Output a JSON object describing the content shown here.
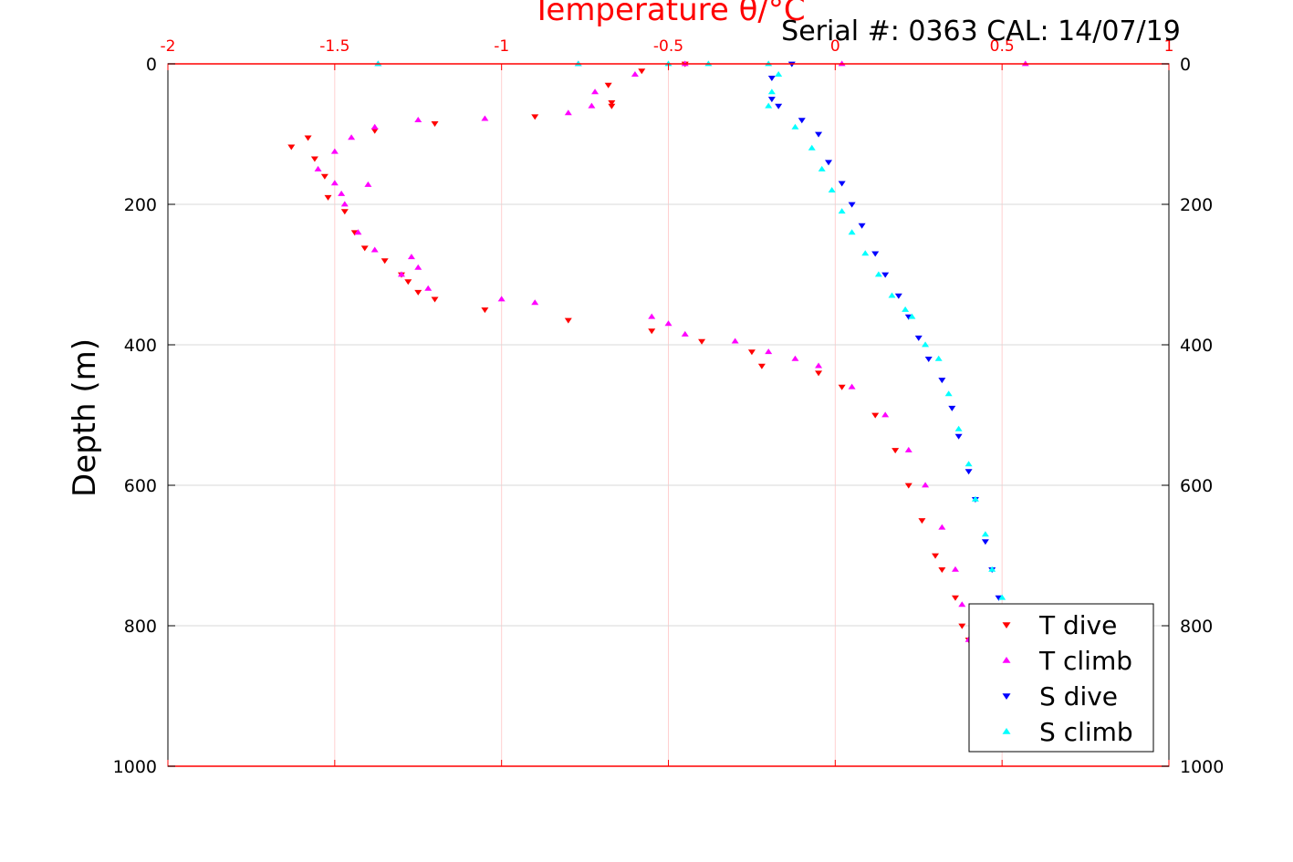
{
  "header": {
    "serial_text": "Serial #: 0363  CAL: 14/07/19"
  },
  "chart_data": {
    "type": "scatter",
    "title": "Temperature θ/°C",
    "xlabel": "Temperature θ/°C",
    "ylabel": "Depth (m)",
    "xlim": [
      -2,
      1
    ],
    "ylim": [
      0,
      1000
    ],
    "y_reversed": true,
    "x_axis_position": "top",
    "xticks": [
      -2,
      -1.5,
      -1,
      -0.5,
      0,
      0.5,
      1
    ],
    "xtick_labels": [
      "-2",
      "-1.5",
      "-1",
      "-0.5",
      "0",
      "0.5",
      "1"
    ],
    "yticks": [
      0,
      200,
      400,
      600,
      800,
      1000
    ],
    "ytick_labels": [
      "0",
      "200",
      "400",
      "600",
      "800",
      "1000"
    ],
    "grid": true,
    "legend_position": "bottom-right",
    "colors": {
      "t_dive": "#ff0000",
      "t_climb": "#ff00ff",
      "s_dive": "#0000ff",
      "s_climb": "#00ffff",
      "x_axis": "#ff0000",
      "grid": "#d9d9d9",
      "grid_x": "#ffd0d0"
    },
    "series": [
      {
        "name": "T dive",
        "marker": "triangle-down",
        "color": "#ff0000",
        "x": [
          -0.45,
          -0.58,
          -0.68,
          -0.67,
          -0.67,
          -0.9,
          -1.2,
          -1.38,
          -1.58,
          -1.63,
          -1.56,
          -1.53,
          -1.52,
          -1.47,
          -1.44,
          -1.41,
          -1.35,
          -1.3,
          -1.28,
          -1.25,
          -1.2,
          -1.05,
          -0.8,
          -0.55,
          -0.4,
          -0.25,
          -0.22,
          -0.05,
          0.02,
          0.12,
          0.18,
          0.22,
          0.26,
          0.3,
          0.32,
          0.36,
          0.38,
          0.4
        ],
        "y": [
          0,
          10,
          30,
          55,
          60,
          75,
          85,
          95,
          105,
          118,
          135,
          160,
          190,
          210,
          240,
          262,
          280,
          300,
          310,
          325,
          335,
          350,
          365,
          380,
          395,
          410,
          430,
          440,
          460,
          500,
          550,
          600,
          650,
          700,
          720,
          760,
          800,
          820
        ]
      },
      {
        "name": "T climb",
        "marker": "triangle-up",
        "color": "#ff00ff",
        "x": [
          -0.45,
          -0.6,
          -0.72,
          -0.73,
          -0.8,
          -1.05,
          -1.25,
          -1.38,
          -1.45,
          -1.5,
          -1.55,
          -1.5,
          -1.4,
          -1.48,
          -1.47,
          -1.43,
          -1.38,
          -1.27,
          -1.25,
          -1.3,
          -1.22,
          -1.0,
          -0.9,
          -0.55,
          -0.5,
          -0.45,
          -0.3,
          -0.2,
          -0.12,
          -0.05,
          0.05,
          0.15,
          0.22,
          0.27,
          0.32,
          0.36,
          0.38,
          0.4,
          0.02,
          0.57,
          -0.77,
          -1.37
        ],
        "y": [
          0,
          15,
          40,
          60,
          70,
          78,
          80,
          90,
          105,
          125,
          150,
          170,
          172,
          185,
          200,
          240,
          265,
          275,
          290,
          300,
          320,
          335,
          340,
          360,
          370,
          385,
          395,
          410,
          420,
          430,
          460,
          500,
          550,
          600,
          660,
          720,
          770,
          820,
          0,
          0,
          0,
          0
        ]
      },
      {
        "name": "S dive",
        "marker": "triangle-down",
        "color": "#0000ff",
        "x": [
          -0.13,
          -0.19,
          -0.19,
          -0.17,
          -0.1,
          -0.05,
          -0.02,
          0.02,
          0.05,
          0.08,
          0.12,
          0.15,
          0.19,
          0.22,
          0.25,
          0.28,
          0.32,
          0.35,
          0.37,
          0.4,
          0.42,
          0.45,
          0.47,
          0.49
        ],
        "y": [
          0,
          20,
          50,
          60,
          80,
          100,
          140,
          170,
          200,
          230,
          270,
          300,
          330,
          360,
          390,
          420,
          450,
          490,
          530,
          580,
          620,
          680,
          720,
          760
        ]
      },
      {
        "name": "S climb",
        "marker": "triangle-up",
        "color": "#00ffff",
        "x": [
          -0.2,
          -0.17,
          -0.19,
          -0.2,
          -0.12,
          -0.07,
          -0.04,
          -0.01,
          0.02,
          0.05,
          0.09,
          0.13,
          0.17,
          0.21,
          0.23,
          0.27,
          0.31,
          0.34,
          0.37,
          0.4,
          0.42,
          0.45,
          0.47,
          0.5,
          -0.38,
          -0.5,
          -0.77,
          -1.37
        ],
        "y": [
          0,
          15,
          40,
          60,
          90,
          120,
          150,
          180,
          210,
          240,
          270,
          300,
          330,
          350,
          360,
          400,
          420,
          470,
          520,
          570,
          620,
          670,
          720,
          760,
          0,
          0,
          0,
          0
        ]
      }
    ]
  }
}
